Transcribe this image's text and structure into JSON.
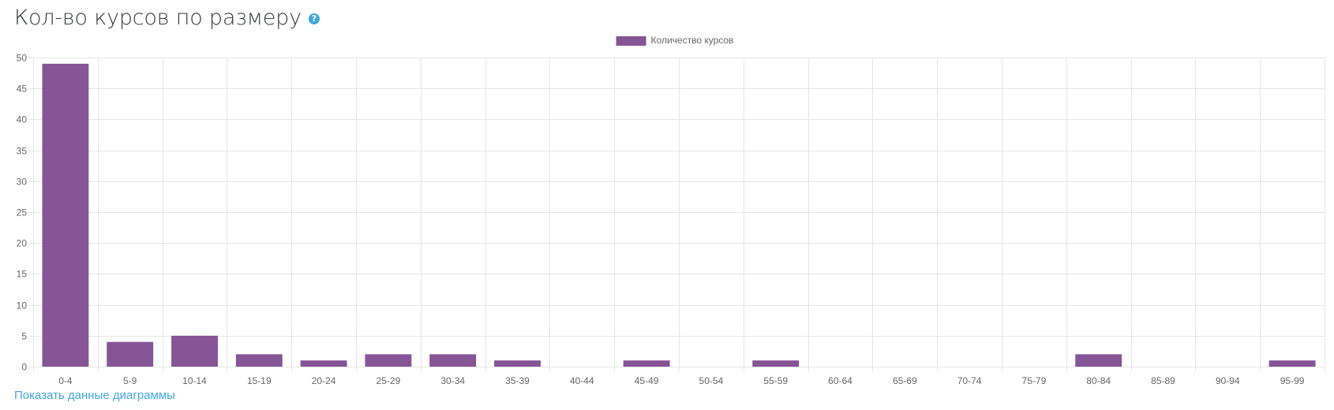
{
  "header": {
    "title": "Кол-во курсов по размеру",
    "help_icon": "question-circle-icon"
  },
  "footer": {
    "show_data_label": "Показать данные диаграммы"
  },
  "colors": {
    "bar": "#865596",
    "grid": "#e5e5e5",
    "axis_text": "#666666",
    "link": "#3fa7dc"
  },
  "chart_data": {
    "type": "bar",
    "title": "",
    "xlabel": "",
    "ylabel": "",
    "ylim": [
      0,
      50
    ],
    "yticks": [
      0,
      5,
      10,
      15,
      20,
      25,
      30,
      35,
      40,
      45,
      50
    ],
    "grid": true,
    "legend_position": "top-center",
    "categories": [
      "0-4",
      "5-9",
      "10-14",
      "15-19",
      "20-24",
      "25-29",
      "30-34",
      "35-39",
      "40-44",
      "45-49",
      "50-54",
      "55-59",
      "60-64",
      "65-69",
      "70-74",
      "75-79",
      "80-84",
      "85-89",
      "90-94",
      "95-99"
    ],
    "series": [
      {
        "name": "Количество курсов",
        "color": "#865596",
        "values": [
          49,
          4,
          5,
          2,
          1,
          2,
          2,
          1,
          0,
          1,
          0,
          1,
          0,
          0,
          0,
          0,
          2,
          0,
          0,
          1
        ]
      }
    ]
  }
}
